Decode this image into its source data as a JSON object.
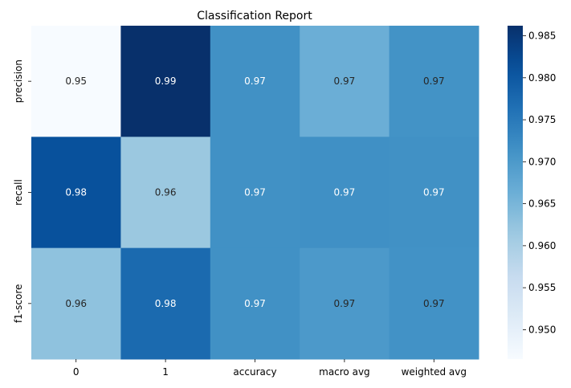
{
  "chart_data": {
    "type": "heatmap",
    "title": "Classification Report",
    "xlabel": "",
    "ylabel": "",
    "columns": [
      "0",
      "1",
      "accuracy",
      "macro avg",
      "weighted avg"
    ],
    "rows": [
      "precision",
      "recall",
      "f1-score"
    ],
    "values": [
      [
        0.9465,
        0.9862,
        0.9715,
        0.9664,
        0.9712
      ],
      [
        0.9812,
        0.9617,
        0.9715,
        0.9716,
        0.9715
      ],
      [
        0.9628,
        0.9774,
        0.9715,
        0.9701,
        0.9713
      ]
    ],
    "cell_labels": [
      [
        "0.95",
        "0.99",
        "0.97",
        "0.97",
        "0.97"
      ],
      [
        "0.98",
        "0.96",
        "0.97",
        "0.97",
        "0.97"
      ],
      [
        "0.96",
        "0.98",
        "0.97",
        "0.97",
        "0.97"
      ]
    ],
    "colorbar": {
      "colormap": "Blues",
      "min": 0.9465,
      "max": 0.9862,
      "ticks": [
        0.95,
        0.955,
        0.96,
        0.965,
        0.97,
        0.975,
        0.98,
        0.985
      ],
      "tick_labels": [
        "0.950",
        "0.955",
        "0.960",
        "0.965",
        "0.970",
        "0.975",
        "0.980",
        "0.985"
      ]
    },
    "grid": false,
    "legend": "colorbar-right"
  }
}
